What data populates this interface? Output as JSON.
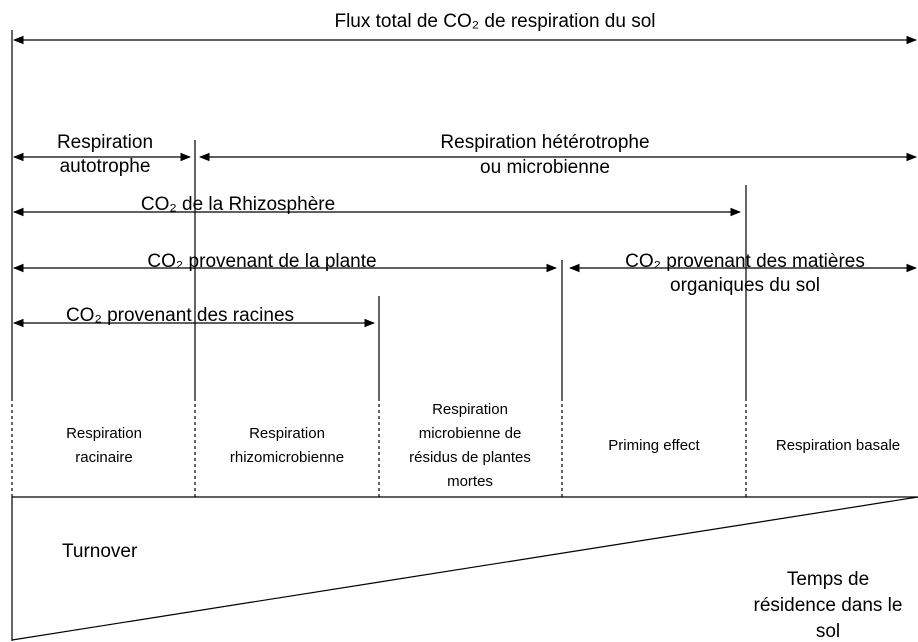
{
  "title": "Flux total de CO₂ de respiration du sol",
  "spans": [
    {
      "lines": [
        "Respiration",
        "autotrophe"
      ]
    },
    {
      "lines": [
        "Respiration hétérotrophe",
        "ou microbienne"
      ]
    },
    {
      "lines": [
        "CO₂ de la Rhizosphère"
      ]
    },
    {
      "lines": [
        "CO₂ provenant de la plante"
      ]
    },
    {
      "lines": [
        "CO₂ provenant des matières",
        "organiques du sol"
      ]
    },
    {
      "lines": [
        "CO₂ provenant des racines"
      ]
    }
  ],
  "cells": [
    {
      "lines": [
        "Respiration",
        "racinaire"
      ]
    },
    {
      "lines": [
        "Respiration",
        "rhizomicrobienne"
      ]
    },
    {
      "lines": [
        "Respiration",
        "microbienne de",
        "résidus de plantes",
        "mortes"
      ]
    },
    {
      "lines": [
        "Priming effect"
      ]
    },
    {
      "lines": [
        "Respiration basale"
      ]
    }
  ],
  "gradient": {
    "left": "Turnover",
    "right": [
      "Temps de",
      "résidence dans le",
      "sol"
    ]
  }
}
